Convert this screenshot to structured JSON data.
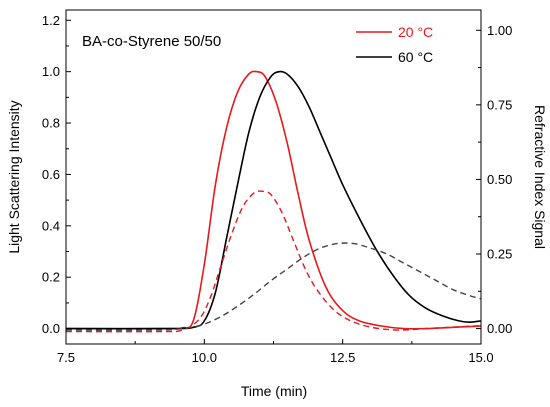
{
  "chart_data": {
    "type": "line",
    "annotation": "BA-co-Styrene 50/50",
    "xlabel": "Time (min)",
    "ylabel_left": "Light Scattering Intensity",
    "ylabel_right": "Refractive Index Signal",
    "xlim": [
      7.5,
      15.0
    ],
    "ylim_left": [
      -0.06,
      1.24
    ],
    "ylim_right": [
      -0.0517,
      1.068
    ],
    "x_ticks": [
      7.5,
      10.0,
      12.5,
      15.0
    ],
    "x_tick_labels": [
      "7.5",
      "10.0",
      "12.5",
      "15.0"
    ],
    "y_left_ticks": [
      0.0,
      0.2,
      0.4,
      0.6,
      0.8,
      1.0,
      1.2
    ],
    "y_left_tick_labels": [
      "0.0",
      "0.2",
      "0.4",
      "0.6",
      "0.8",
      "1.0",
      "1.2"
    ],
    "y_right_ticks": [
      0.0,
      0.25,
      0.5,
      0.75,
      1.0
    ],
    "y_right_tick_labels": [
      "0.00",
      "0.25",
      "0.50",
      "0.75",
      "1.00"
    ],
    "grid": false,
    "legend_position": "top-right",
    "legend": [
      {
        "label": "20 °C",
        "color": "#e8191c"
      },
      {
        "label": "60 °C",
        "color": "#000000"
      }
    ],
    "series": [
      {
        "temp": "20 °C",
        "signal": "light-scattering",
        "axis": "left",
        "color": "#e8191c",
        "dash": "solid",
        "x": [
          7.5,
          9.3,
          9.6,
          9.8,
          10.0,
          10.2,
          10.4,
          10.6,
          10.8,
          10.95,
          11.1,
          11.3,
          11.5,
          11.7,
          11.9,
          12.2,
          12.5,
          12.8,
          13.2,
          13.6,
          14.0,
          14.5,
          15.0
        ],
        "y": [
          0.0,
          0.0,
          0.003,
          0.03,
          0.25,
          0.56,
          0.78,
          0.92,
          0.99,
          1.0,
          0.98,
          0.88,
          0.72,
          0.52,
          0.34,
          0.16,
          0.07,
          0.03,
          0.01,
          0.0,
          0.0,
          0.005,
          0.01
        ]
      },
      {
        "temp": "60 °C",
        "signal": "light-scattering",
        "axis": "left",
        "color": "#000000",
        "dash": "solid",
        "x": [
          7.5,
          9.4,
          9.8,
          10.0,
          10.2,
          10.4,
          10.6,
          10.8,
          11.0,
          11.2,
          11.35,
          11.5,
          11.7,
          11.9,
          12.1,
          12.3,
          12.5,
          12.8,
          13.1,
          13.4,
          13.7,
          14.0,
          14.3,
          14.6,
          14.8,
          15.0
        ],
        "y": [
          0.0,
          0.0,
          0.005,
          0.03,
          0.14,
          0.35,
          0.56,
          0.76,
          0.9,
          0.98,
          1.0,
          0.99,
          0.94,
          0.86,
          0.76,
          0.66,
          0.56,
          0.43,
          0.31,
          0.21,
          0.13,
          0.08,
          0.05,
          0.03,
          0.025,
          0.03
        ]
      },
      {
        "temp": "20 °C",
        "signal": "refractive-index",
        "axis": "right",
        "color": "#e8191c",
        "dash": "dashed",
        "x": [
          7.5,
          9.2,
          9.6,
          9.9,
          10.1,
          10.3,
          10.5,
          10.7,
          10.9,
          11.05,
          11.2,
          11.4,
          11.6,
          11.8,
          12.0,
          12.3,
          12.6,
          13.0,
          13.5,
          14.0,
          14.5,
          15.0
        ],
        "y": [
          -0.01,
          -0.01,
          -0.005,
          0.03,
          0.1,
          0.21,
          0.32,
          0.41,
          0.455,
          0.46,
          0.45,
          0.39,
          0.3,
          0.21,
          0.14,
          0.07,
          0.03,
          0.005,
          -0.005,
          0.0,
          0.005,
          0.01
        ]
      },
      {
        "temp": "60 °C",
        "signal": "refractive-index",
        "axis": "right",
        "color": "#444444",
        "dash": "dashed",
        "x": [
          7.5,
          9.0,
          9.5,
          9.8,
          10.0,
          10.3,
          10.6,
          10.9,
          11.2,
          11.5,
          11.8,
          12.1,
          12.4,
          12.7,
          13.0,
          13.3,
          13.6,
          13.9,
          14.2,
          14.5,
          14.8,
          15.0
        ],
        "y": [
          -0.005,
          -0.005,
          -0.002,
          0.005,
          0.015,
          0.04,
          0.075,
          0.115,
          0.16,
          0.2,
          0.24,
          0.27,
          0.285,
          0.285,
          0.27,
          0.25,
          0.22,
          0.19,
          0.16,
          0.13,
          0.11,
          0.1
        ]
      }
    ]
  }
}
